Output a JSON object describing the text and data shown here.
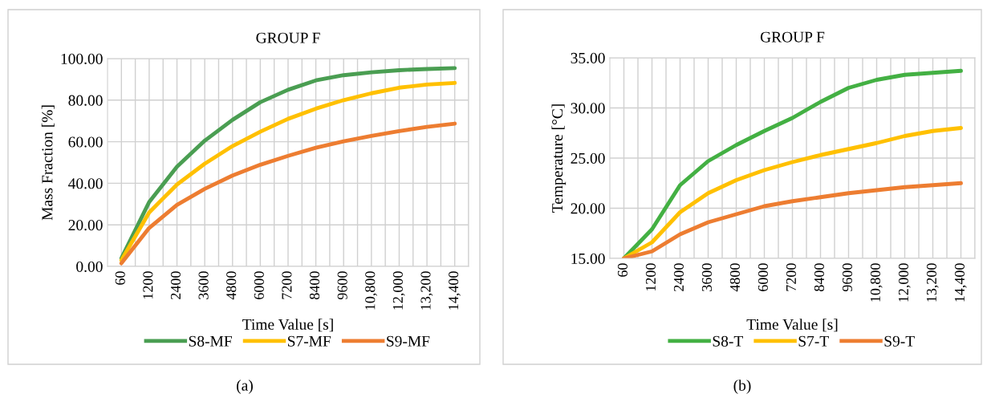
{
  "chart_data": [
    {
      "type": "line",
      "title": "GROUP F",
      "xlabel": "Time Value [s]",
      "ylabel": "Mass Fraction [%]",
      "categories": [
        "60",
        "1200",
        "2400",
        "3600",
        "4800",
        "6000",
        "7200",
        "8400",
        "9600",
        "10,800",
        "12,000",
        "13,200",
        "14,400"
      ],
      "series": [
        {
          "name": "S8-MF",
          "color": "#4a9e52",
          "values": [
            3.9,
            31,
            48,
            60.5,
            70.5,
            79,
            85,
            89.5,
            92,
            93.4,
            94.4,
            95,
            95.4
          ]
        },
        {
          "name": "S7-MF",
          "color": "#ffc000",
          "values": [
            3,
            26,
            39.4,
            49.4,
            57.9,
            64.8,
            71,
            75.9,
            80,
            83.3,
            86,
            87.5,
            88.3
          ]
        },
        {
          "name": "S9-MF",
          "color": "#ed7d31",
          "values": [
            1.5,
            18.5,
            29.6,
            37.3,
            43.7,
            48.9,
            53.2,
            57.1,
            60.2,
            62.8,
            65.1,
            67.1,
            68.7
          ]
        }
      ],
      "ylim": [
        0,
        100
      ],
      "yticks": [
        {
          "value": 0,
          "label": "0.00"
        },
        {
          "value": 20,
          "label": "20.00"
        },
        {
          "value": 40,
          "label": "40.00"
        },
        {
          "value": 60,
          "label": "60.00"
        },
        {
          "value": 80,
          "label": "80.00"
        },
        {
          "value": 100,
          "label": "100.00"
        }
      ],
      "grid": true,
      "legend": "bottom",
      "annotations": [
        "(a)"
      ]
    },
    {
      "type": "line",
      "title": "GROUP F",
      "xlabel": "Time Value [s]",
      "ylabel": "Temperature [°C]",
      "categories": [
        "60",
        "1200",
        "2400",
        "3600",
        "4800",
        "6000",
        "7200",
        "8400",
        "9600",
        "10,800",
        "12,000",
        "13,200",
        "14,400"
      ],
      "series": [
        {
          "name": "S8-T",
          "color": "#43b043",
          "values": [
            15,
            17.9,
            22.3,
            24.7,
            26.3,
            27.7,
            29.0,
            30.6,
            32.0,
            32.8,
            33.3,
            33.5,
            33.7
          ]
        },
        {
          "name": "S7-T",
          "color": "#ffc000",
          "values": [
            15,
            16.6,
            19.6,
            21.5,
            22.8,
            23.8,
            24.6,
            25.3,
            25.9,
            26.5,
            27.2,
            27.7,
            28.0
          ]
        },
        {
          "name": "S9-T",
          "color": "#ed7d31",
          "values": [
            15,
            15.7,
            17.4,
            18.6,
            19.4,
            20.2,
            20.7,
            21.1,
            21.5,
            21.8,
            22.1,
            22.3,
            22.5
          ]
        }
      ],
      "ylim": [
        15,
        35
      ],
      "yticks": [
        {
          "value": 15,
          "label": "15.00"
        },
        {
          "value": 20,
          "label": "20.00"
        },
        {
          "value": 25,
          "label": "25.00"
        },
        {
          "value": 30,
          "label": "30.00"
        },
        {
          "value": 35,
          "label": "35.00"
        }
      ],
      "grid": true,
      "legend": "bottom",
      "annotations": [
        "(b)"
      ]
    }
  ]
}
